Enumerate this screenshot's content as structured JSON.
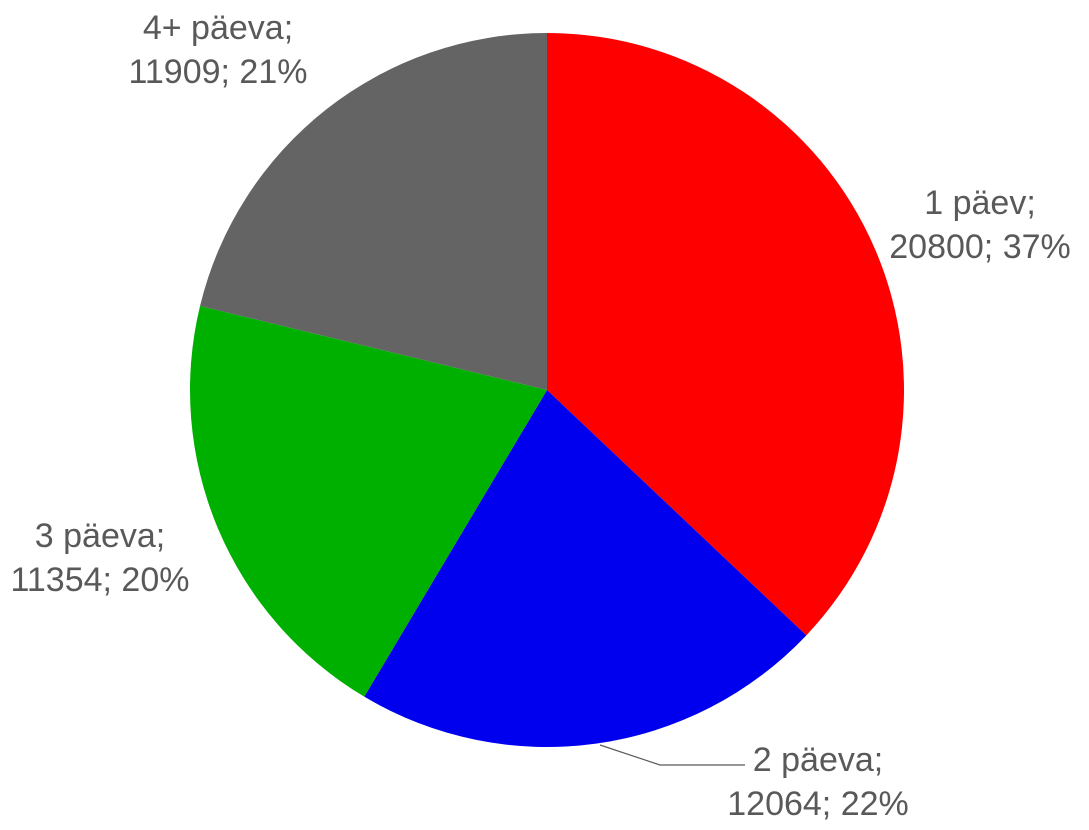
{
  "chart_data": {
    "type": "pie",
    "values": [
      20800,
      12064,
      11354,
      11909
    ],
    "value_labels": [
      [
        "1 päev;",
        "20800; 37%"
      ],
      [
        "2 päeva;",
        "12064; 22%"
      ],
      [
        "3 päeva;",
        "11354; 20%"
      ],
      [
        "4+ päeva;",
        "11909; 21%"
      ]
    ],
    "colors": [
      "#ff0000",
      "#0000ee",
      "#00b000",
      "#646464"
    ]
  }
}
